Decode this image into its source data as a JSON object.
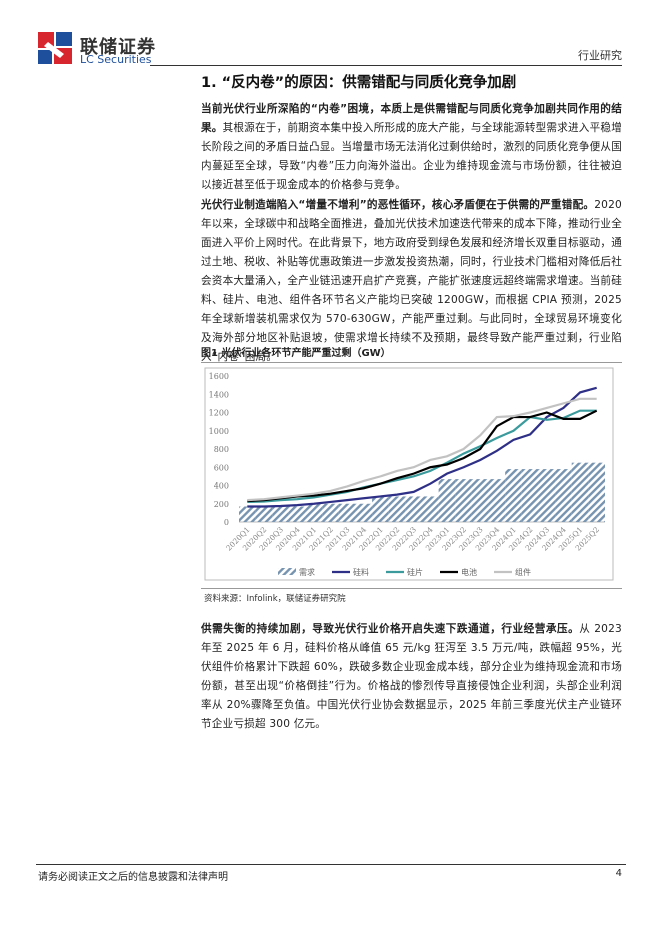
{
  "header": {
    "brand": "联储证券",
    "brand_en": "LC Securities",
    "category": "行业研究"
  },
  "section_title": "1. “反内卷”的原因：供需错配与同质化竞争加剧",
  "paragraphs": [
    {
      "lead": "当前光伏行业所深陷的“内卷”困境，本质上是供需错配与同质化竞争加剧共同作用的结果。",
      "body": "其根源在于，前期资本集中投入所形成的庞大产能，与全球能源转型需求进入平稳增长阶段之间的矛盾日益凸显。当增量市场无法消化过剩供给时，激烈的同质化竞争便从国内蔓延至全球，导致“内卷”压力向海外溢出。企业为维持现金流与市场份额，往往被迫以接近甚至低于现金成本的价格参与竞争。"
    },
    {
      "lead": "光伏行业制造端陷入“增量不增利”的恶性循环，核心矛盾便在于供需的严重错配。",
      "body": "2020 年以来，全球碳中和战略全面推进，叠加光伏技术加速迭代带来的成本下降，推动行业全面进入平价上网时代。在此背景下，地方政府受到绿色发展和经济增长双重目标驱动，通过土地、税收、补贴等优惠政策进一步激发投资热潮，同时，行业技术门槛相对降低后社会资本大量涌入，全产业链迅速开启扩产竞赛，产能扩张速度远超终端需求增速。当前硅料、硅片、电池、组件各环节名义产能均已突破 1200GW，而根据 CPIA 预测，2025 年全球新增装机需求仅为 570-630GW，产能严重过剩。与此同时，全球贸易环境变化及海外部分地区补贴退坡，使需求增长持续不及预期，最终导致产能严重过剩，行业陷入“内卷”困局。"
    },
    {
      "lead": "供需失衡的持续加剧，导致光伏行业价格开启失速下跌通道，行业经营承压。",
      "body": "从 2023 年至 2025 年 6 月，硅料价格从峰值 65 元/kg 狂泻至 3.5 万元/吨，跌幅超 95%，光伏组件价格累计下跌超 60%，跌破多数企业现金成本线，部分企业为维持现金流和市场份额，甚至出现“价格倒挂”行为。价格战的惨烈传导直接侵蚀企业利润，头部企业利润率从 20%骤降至负值。中国光伏行业协会数据显示，2025 年前三季度光伏主产业链环节企业亏损超 300 亿元。"
    }
  ],
  "chart_data": {
    "type": "combo",
    "title": "图1  光伏行业各环节产能严重过剩（GW）",
    "source": "资料来源：Infolink，联储证券研究院",
    "categories": [
      "2020Q1",
      "2020Q2",
      "2020Q3",
      "2020Q4",
      "2021Q1",
      "2021Q2",
      "2021Q3",
      "2021Q4",
      "2022Q1",
      "2022Q2",
      "2022Q3",
      "2022Q4",
      "2023Q1",
      "2023Q2",
      "2023Q3",
      "2023Q4",
      "2024Q1",
      "2024Q2",
      "2024Q3",
      "2024Q4",
      "2025Q1",
      "2025Q2"
    ],
    "series": [
      {
        "name": "需求",
        "type": "bar",
        "pattern": "hatch",
        "color": "#7693b0",
        "values": [
          170,
          170,
          170,
          170,
          200,
          200,
          200,
          200,
          280,
          280,
          280,
          280,
          470,
          470,
          470,
          470,
          580,
          580,
          580,
          580,
          650,
          650
        ]
      },
      {
        "name": "硅料",
        "type": "line",
        "color": "#2e2f86",
        "values": [
          170,
          170,
          175,
          185,
          200,
          220,
          240,
          260,
          280,
          300,
          330,
          420,
          530,
          600,
          680,
          780,
          900,
          960,
          1150,
          1250,
          1420,
          1470
        ]
      },
      {
        "name": "硅片",
        "type": "line",
        "color": "#3a9a9c",
        "values": [
          220,
          225,
          240,
          250,
          270,
          300,
          330,
          380,
          420,
          460,
          500,
          560,
          650,
          750,
          830,
          920,
          1000,
          1150,
          1120,
          1140,
          1220,
          1220
        ]
      },
      {
        "name": "电池",
        "type": "line",
        "color": "#000000",
        "values": [
          230,
          240,
          260,
          280,
          290,
          310,
          340,
          370,
          420,
          480,
          530,
          600,
          630,
          700,
          800,
          1050,
          1150,
          1150,
          1200,
          1130,
          1130,
          1220
        ]
      },
      {
        "name": "组件",
        "type": "line",
        "color": "#c2c2c2",
        "values": [
          240,
          250,
          270,
          290,
          310,
          340,
          390,
          450,
          500,
          560,
          600,
          680,
          720,
          800,
          950,
          1150,
          1160,
          1200,
          1250,
          1300,
          1350,
          1350
        ]
      }
    ],
    "ylim": [
      0,
      1600
    ],
    "yticks": [
      0,
      200,
      400,
      600,
      800,
      1000,
      1200,
      1400,
      1600
    ],
    "grid": false,
    "legend": "bottom"
  },
  "footer": {
    "disclaimer": "请务必阅读正文之后的信息披露和法律声明",
    "page_number": 4
  }
}
